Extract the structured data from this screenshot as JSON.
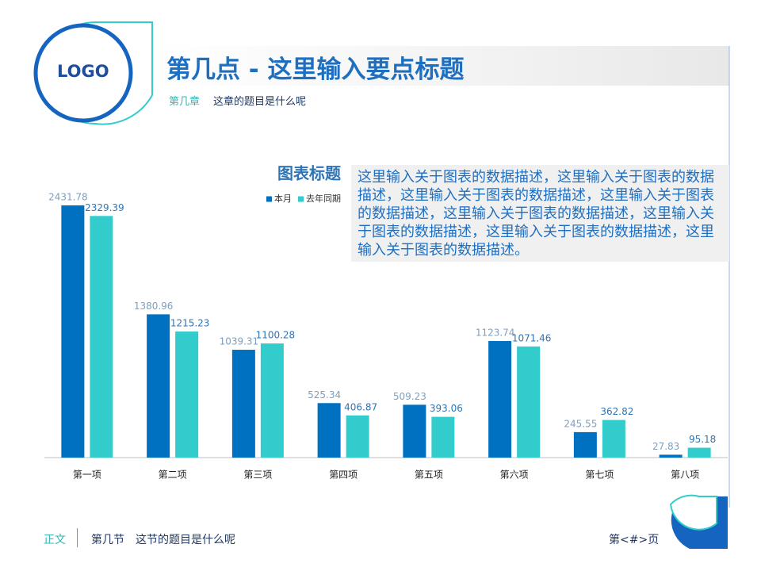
{
  "logo": "LOGO",
  "header": {
    "title": "第几点 - 这里输入要点标题",
    "chapter": "第几章",
    "subtitle": "这章的题目是什么呢"
  },
  "chart_data": {
    "type": "bar",
    "title": "图表标题",
    "categories": [
      "第一项",
      "第二项",
      "第三项",
      "第四项",
      "第五项",
      "第六项",
      "第七项",
      "第八项"
    ],
    "series": [
      {
        "name": "本月",
        "color": "#0070c0",
        "values": [
          2431.78,
          1380.96,
          1039.31,
          525.34,
          509.23,
          1123.74,
          245.55,
          27.83
        ]
      },
      {
        "name": "去年同期",
        "color": "#33cccc",
        "values": [
          2329.39,
          1215.23,
          1100.28,
          406.87,
          393.06,
          1071.46,
          362.82,
          95.18
        ]
      }
    ],
    "ylim": [
      0,
      2500
    ],
    "legend": "top-right"
  },
  "description": "这里输入关于图表的数据描述，这里输入关于图表的数据描述，这里输入关于图表的数据描述，这里输入关于图表的数据描述，这里输入关于图表的数据描述，这里输入关于图表的数据描述，这里输入关于图表的数据描述，这里输入关于图表的数据描述。",
  "footer": {
    "section_label": "正文",
    "section": "第几节",
    "section_title": "这节的题目是什么呢",
    "page": "第<#>页"
  }
}
